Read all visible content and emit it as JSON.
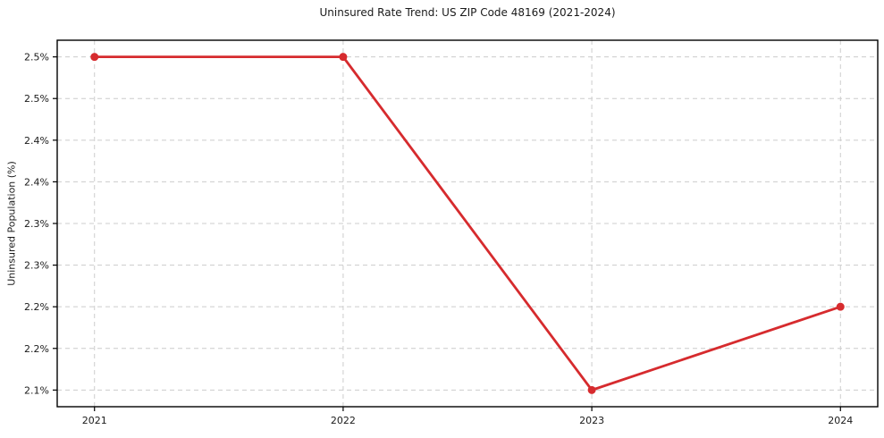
{
  "chart_data": {
    "type": "line",
    "title": "Uninsured Rate Trend: US ZIP Code 48169 (2021-2024)",
    "xlabel": "",
    "ylabel": "Uninsured Population (%)",
    "x": [
      2021,
      2022,
      2023,
      2024
    ],
    "xtick_labels": [
      "2021",
      "2022",
      "2023",
      "2024"
    ],
    "series": [
      {
        "name": "Uninsured Population (%)",
        "values": [
          2.5,
          2.5,
          2.1,
          2.2
        ]
      }
    ],
    "xlim": [
      2020.85,
      2024.15
    ],
    "ylim": [
      2.08,
      2.52
    ],
    "ytick_values": [
      2.1,
      2.15,
      2.2,
      2.25,
      2.3,
      2.35,
      2.4,
      2.45,
      2.5
    ],
    "ytick_labels": [
      "2.1%",
      "2.2%",
      "2.2%",
      "2.3%",
      "2.3%",
      "2.4%",
      "2.4%",
      "2.5%",
      "2.5%"
    ],
    "grid": true,
    "legend": false,
    "colors": {
      "line": "#d62b2e",
      "marker": "#d62b2e",
      "grid": "#cccccc",
      "axis": "#000000",
      "text": "#1a1a1a",
      "background": "#ffffff"
    }
  }
}
